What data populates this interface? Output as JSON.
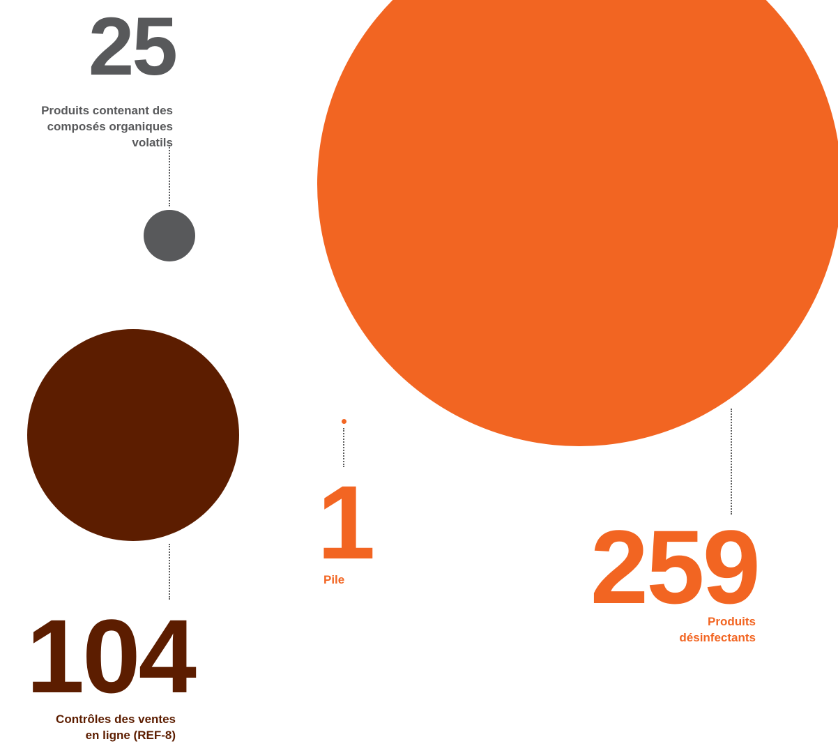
{
  "chart_data": {
    "type": "bubble",
    "title": "",
    "series": [
      {
        "label": "Produits contenant des composés organiques volatils",
        "value": 25,
        "color": "#58595b"
      },
      {
        "label": "Produits désinfectants",
        "value": 259,
        "color": "#f26522"
      },
      {
        "label": "Contrôles des ventes en ligne (REF-8)",
        "value": 104,
        "color": "#5c1d00"
      },
      {
        "label": "Pile",
        "value": 1,
        "color": "#f26522"
      }
    ]
  },
  "items": {
    "voc": {
      "number": "25",
      "label_lines": [
        "Produits contenant des",
        "composés organiques",
        "volatils"
      ]
    },
    "disinfectants": {
      "number": "259",
      "label_lines": [
        "Produits",
        "désinfectants"
      ]
    },
    "online": {
      "number": "104",
      "label_lines": [
        "Contrôles des ventes",
        "en ligne (REF-8)"
      ]
    },
    "battery": {
      "number": "1",
      "label_lines": [
        "Pile"
      ]
    }
  }
}
